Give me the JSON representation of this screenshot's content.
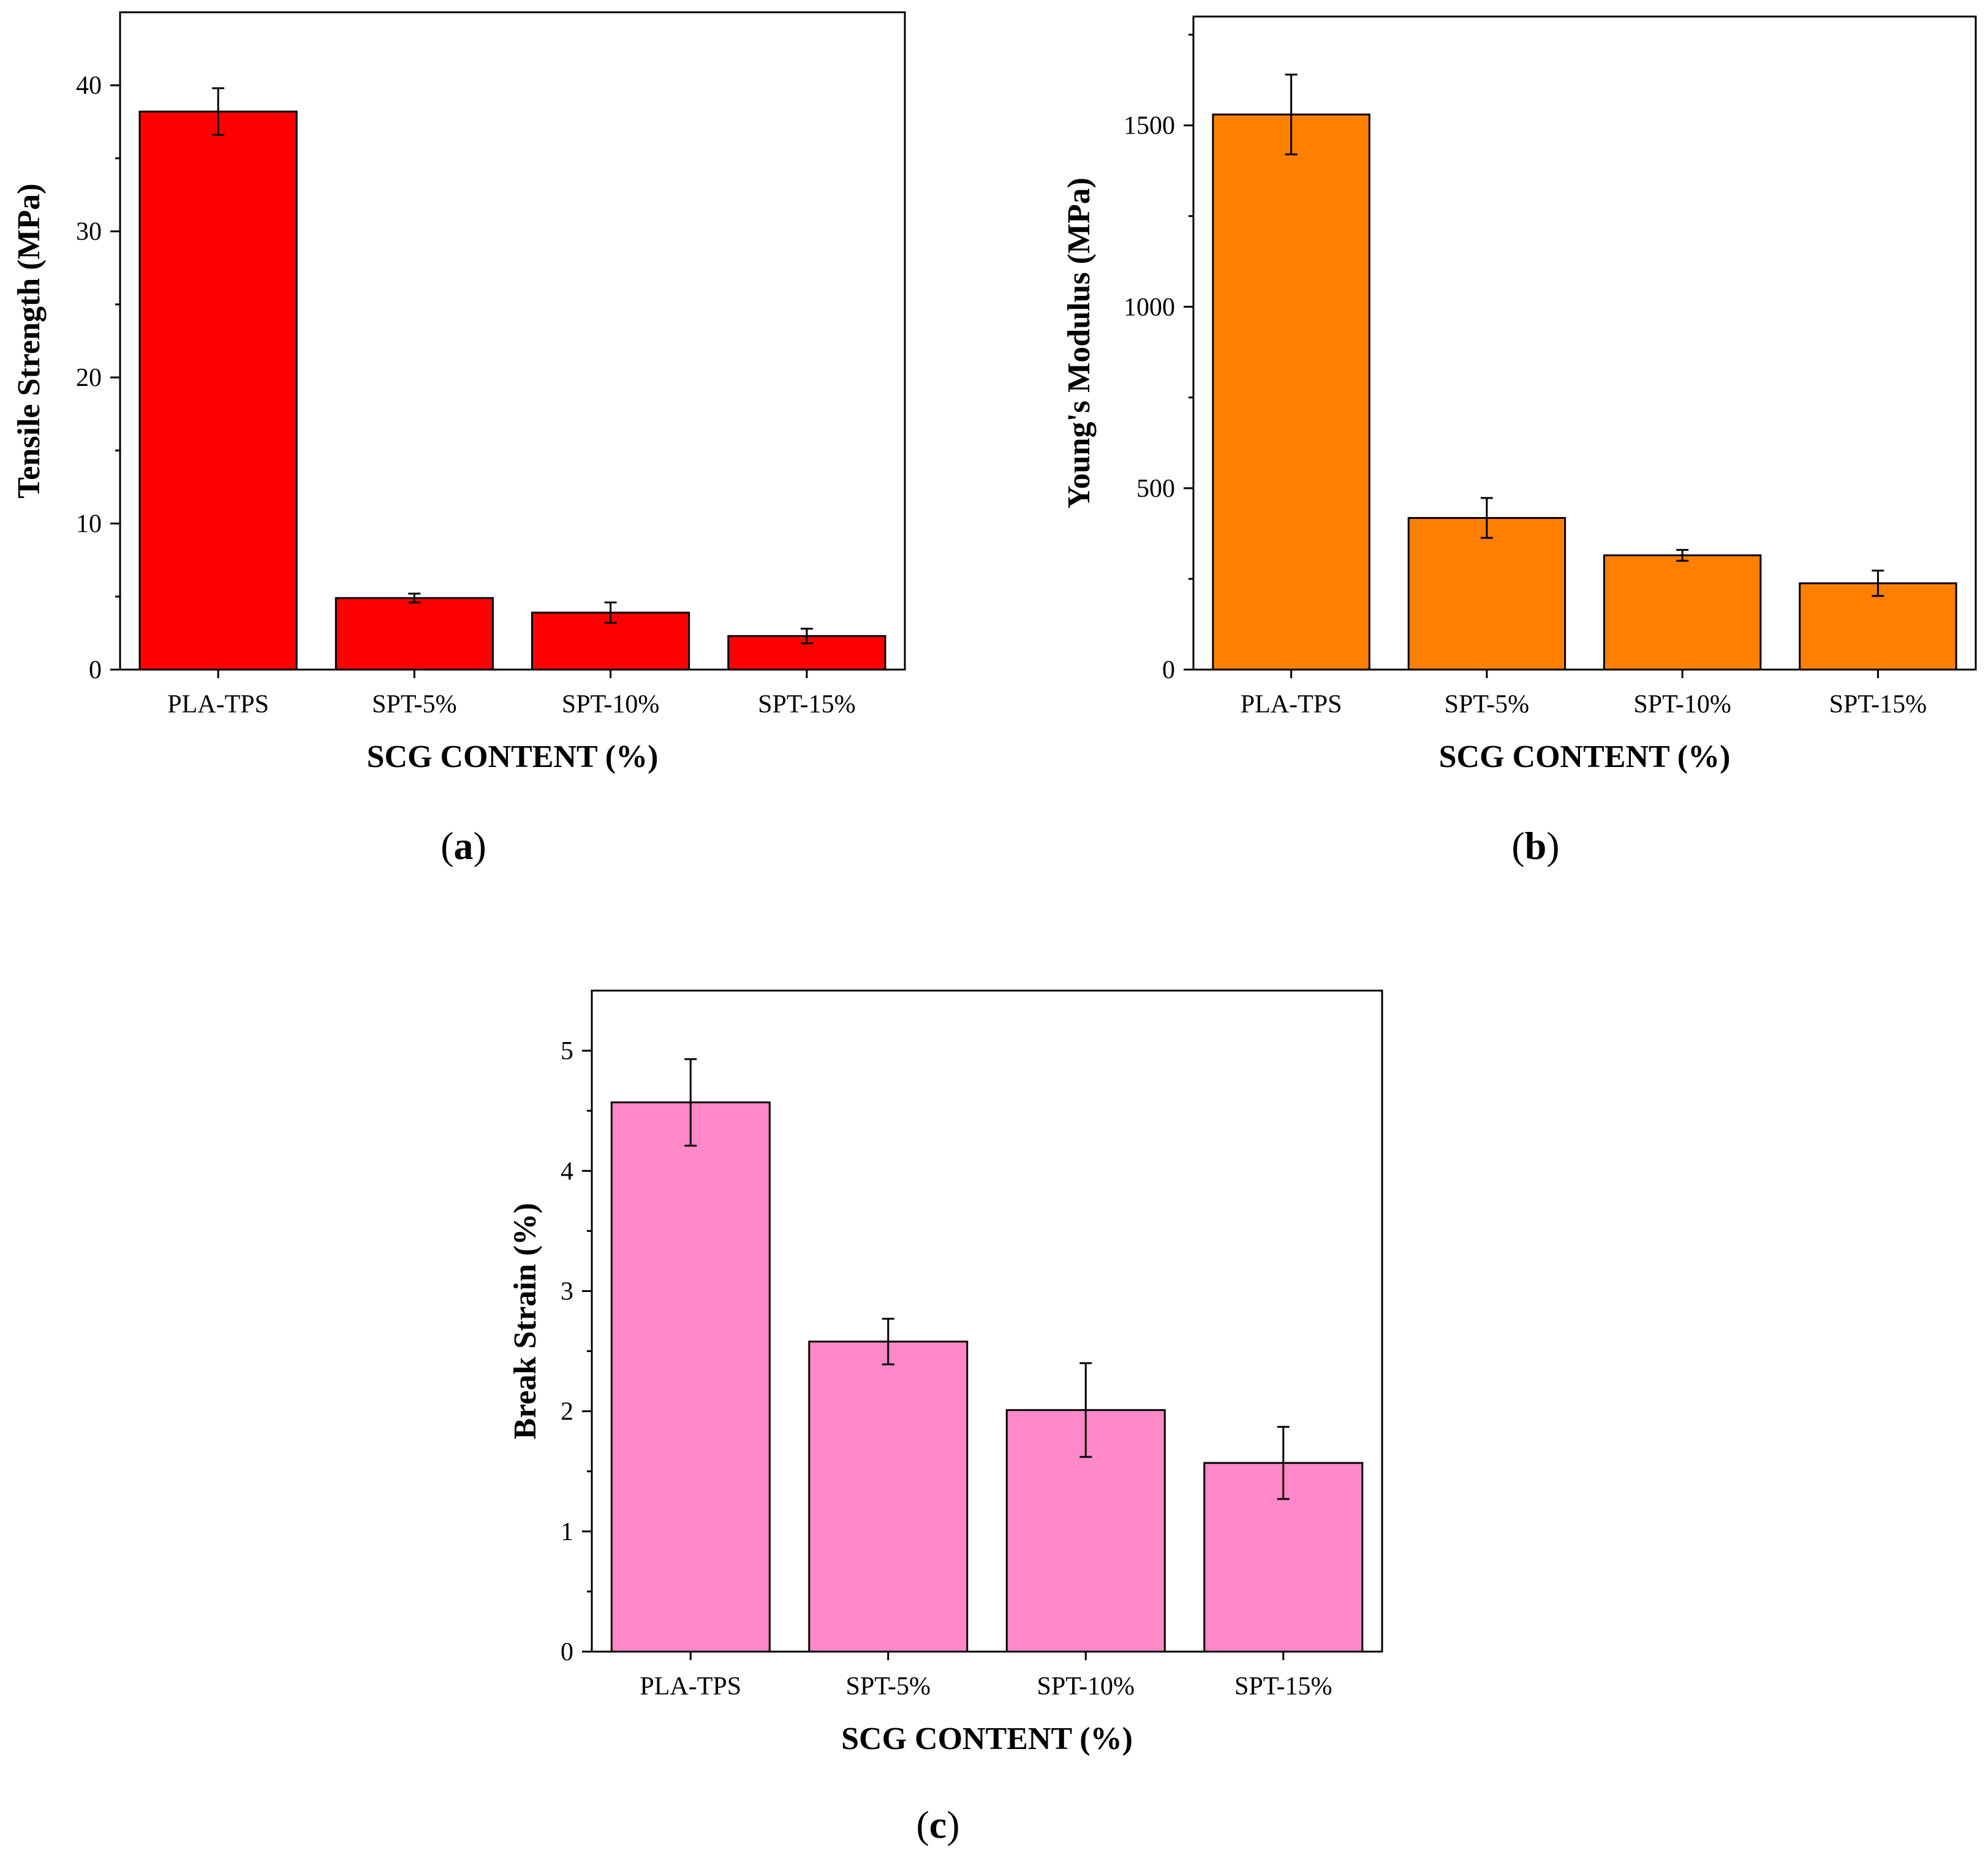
{
  "chart_data": [
    {
      "id": "a",
      "type": "bar",
      "title": "",
      "panel_label": "a",
      "xlabel": "SCG CONTENT (%)",
      "ylabel": "Tensile Strength (MPa)",
      "categories": [
        "PLA-TPS",
        "SPT-5%",
        "SPT-10%",
        "SPT-15%"
      ],
      "values": [
        38.2,
        4.9,
        3.9,
        2.3
      ],
      "errors": [
        1.6,
        0.3,
        0.7,
        0.5
      ],
      "ylim": [
        0,
        45
      ],
      "yticks": [
        0,
        10,
        20,
        30,
        40
      ],
      "color": "#ff0000",
      "grid": false
    },
    {
      "id": "b",
      "type": "bar",
      "title": "",
      "panel_label": "b",
      "xlabel": "SCG CONTENT (%)",
      "ylabel": "Young's Modulus (MPa)",
      "categories": [
        "PLA-TPS",
        "SPT-5%",
        "SPT-10%",
        "SPT-15%"
      ],
      "values": [
        1530,
        418,
        315,
        238
      ],
      "errors": [
        110,
        55,
        15,
        35
      ],
      "ylim": [
        0,
        1800
      ],
      "yticks": [
        0,
        500,
        1000,
        1500
      ],
      "color": "#ff8000",
      "grid": false
    },
    {
      "id": "c",
      "type": "bar",
      "title": "",
      "panel_label": "c",
      "xlabel": "SCG CONTENT (%)",
      "ylabel": "Break Strain (%)",
      "categories": [
        "PLA-TPS",
        "SPT-5%",
        "SPT-10%",
        "SPT-15%"
      ],
      "values": [
        4.57,
        2.58,
        2.01,
        1.57
      ],
      "errors": [
        0.36,
        0.19,
        0.39,
        0.3
      ],
      "ylim": [
        0,
        5.5
      ],
      "yticks": [
        0,
        1,
        2,
        3,
        4,
        5
      ],
      "color": "#ff88c8",
      "grid": false
    }
  ]
}
